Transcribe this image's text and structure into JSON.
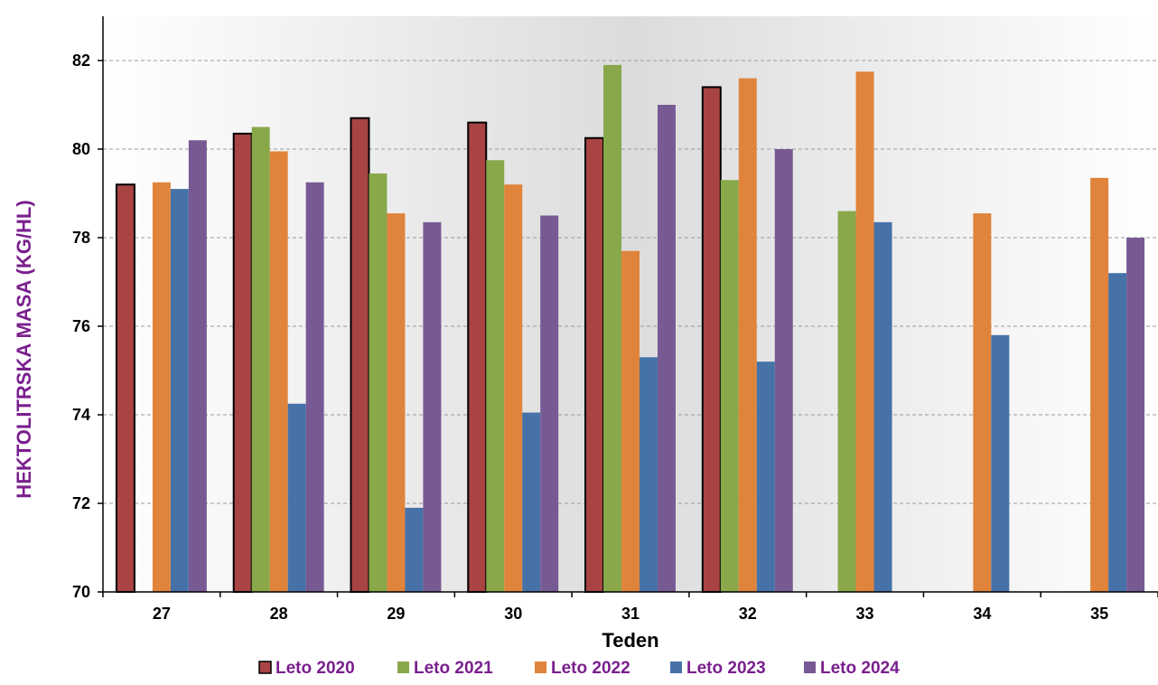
{
  "chart_data": {
    "type": "bar",
    "title": "",
    "xlabel": "Teden",
    "ylabel": "HEKTOLITRSKA MASA (KG/HL)",
    "ylim": [
      70,
      83
    ],
    "yticks": [
      70,
      72,
      74,
      76,
      78,
      80,
      82
    ],
    "categories": [
      "27",
      "28",
      "29",
      "30",
      "31",
      "32",
      "33",
      "34",
      "35"
    ],
    "grid": "horizontal dashed",
    "legend_position": "bottom",
    "series": [
      {
        "name": "Leto 2020",
        "color": "#a84444",
        "values": [
          79.2,
          80.35,
          80.7,
          80.6,
          80.25,
          81.4,
          null,
          null,
          null
        ]
      },
      {
        "name": "Leto 2021",
        "color": "#88a84a",
        "values": [
          null,
          80.5,
          79.45,
          79.75,
          81.9,
          79.3,
          78.6,
          null,
          null
        ]
      },
      {
        "name": "Leto 2022",
        "color": "#e0843c",
        "values": [
          79.25,
          79.95,
          78.55,
          79.2,
          77.7,
          81.6,
          81.75,
          78.55,
          79.35
        ]
      },
      {
        "name": "Leto 2023",
        "color": "#4672a8",
        "values": [
          79.1,
          74.25,
          71.9,
          74.05,
          75.3,
          75.2,
          78.35,
          75.8,
          77.2
        ]
      },
      {
        "name": "Leto 2024",
        "color": "#775a93",
        "values": [
          80.2,
          79.25,
          78.35,
          78.5,
          81.0,
          80.0,
          null,
          null,
          78.0
        ]
      }
    ]
  }
}
